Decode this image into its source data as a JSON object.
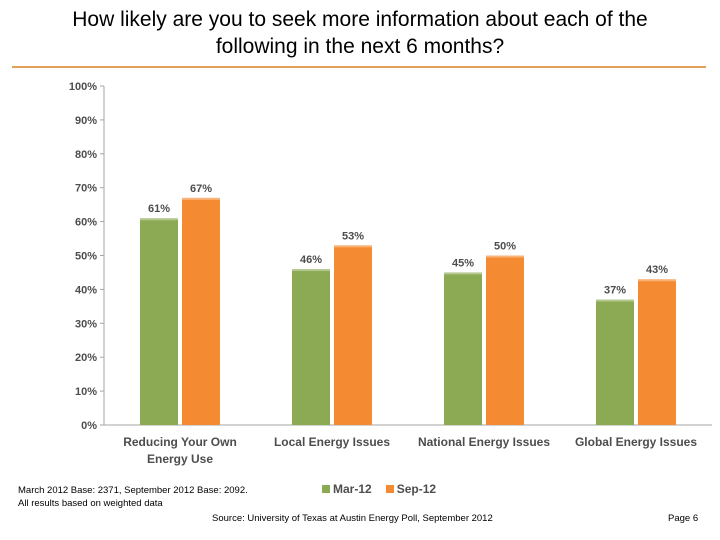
{
  "header": {
    "title_line1": "How likely are you to seek more information about each of the",
    "title_line2": "following in the next 6 months?"
  },
  "chart_data": {
    "type": "bar",
    "title": "How likely are you to seek more information about each of the following in the next 6 months?",
    "categories": [
      [
        "Reducing Your Own",
        "Energy Use"
      ],
      [
        "Local Energy Issues"
      ],
      [
        "National Energy Issues"
      ],
      [
        "Global Energy Issues"
      ]
    ],
    "series": [
      {
        "name": "Mar-12",
        "color": "#8caa54",
        "values": [
          61,
          46,
          45,
          37
        ],
        "labels": [
          "61%",
          "46%",
          "45%",
          "37%"
        ]
      },
      {
        "name": "Sep-12",
        "color": "#f48a32",
        "values": [
          67,
          53,
          50,
          43
        ],
        "labels": [
          "67%",
          "53%",
          "50%",
          "43%"
        ]
      }
    ],
    "ylim": [
      0,
      100
    ],
    "yticks": [
      "0%",
      "10%",
      "20%",
      "30%",
      "40%",
      "50%",
      "60%",
      "70%",
      "80%",
      "90%",
      "100%"
    ],
    "xlabel": "",
    "ylabel": "",
    "legend": "bottom-center",
    "grid": false
  },
  "footer": {
    "note_line1": "March 2012 Base: 2371, September 2012 Base: 2092.",
    "note_line2": "All results based on weighted data",
    "source": "Source: University of Texas at Austin Energy Poll, September 2012",
    "page": "Page 6"
  }
}
